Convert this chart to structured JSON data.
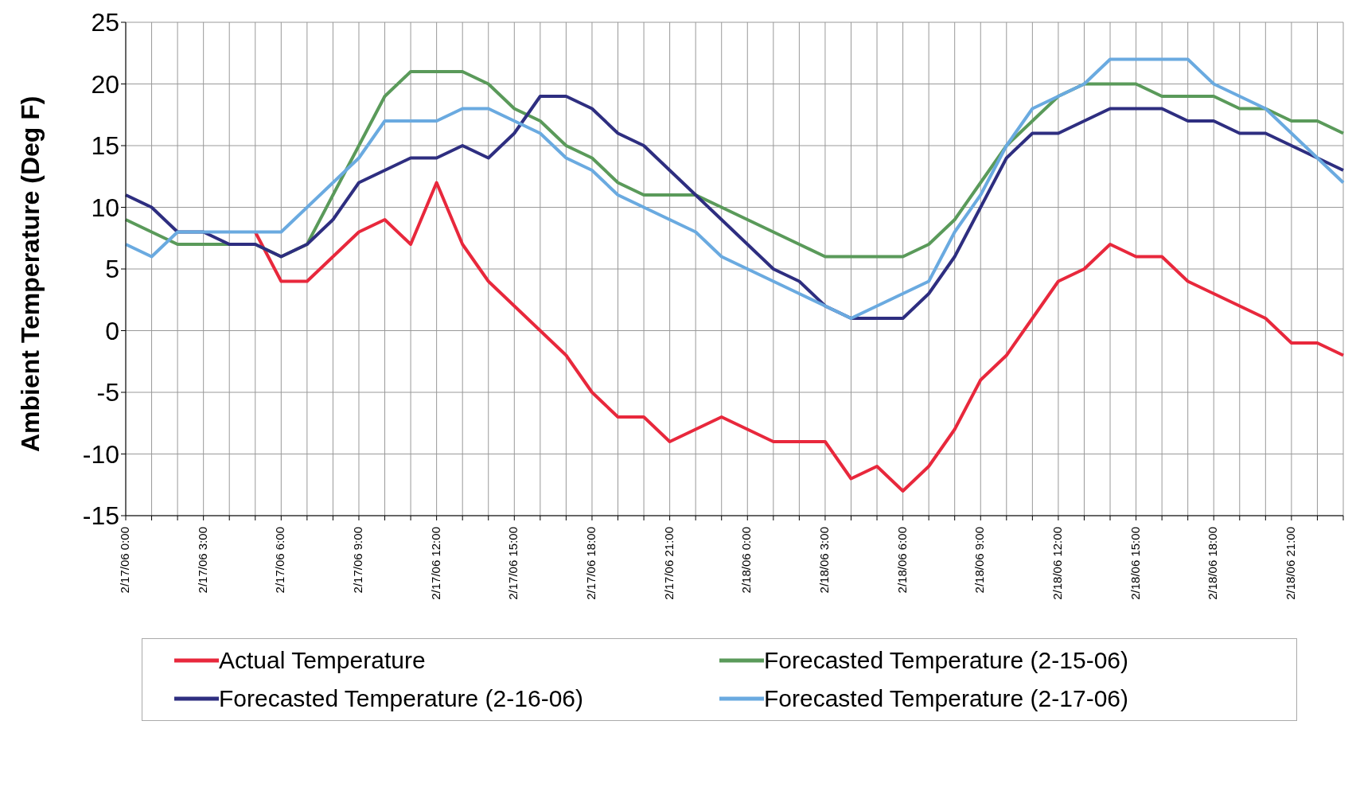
{
  "chart_data": {
    "type": "line",
    "ylabel": "Ambient Temperature (Deg F)",
    "categories": [
      "2/17/06 0:00",
      null,
      null,
      "2/17/06 3:00",
      null,
      null,
      "2/17/06 6:00",
      null,
      null,
      "2/17/06 9:00",
      null,
      null,
      "2/17/06 12:00",
      null,
      null,
      "2/17/06 15:00",
      null,
      null,
      "2/17/06 18:00",
      null,
      null,
      "2/17/06 21:00",
      null,
      null,
      "2/18/06 0:00",
      null,
      null,
      "2/18/06 3:00",
      null,
      null,
      "2/18/06 6:00",
      null,
      null,
      "2/18/06 9:00",
      null,
      null,
      "2/18/06 12:00",
      null,
      null,
      "2/18/06 15:00",
      null,
      null,
      "2/18/06 18:00",
      null,
      null,
      "2/18/06 21:00",
      null,
      null
    ],
    "series": [
      {
        "name": "Actual Temperature",
        "color": "#e8283c",
        "values": [
          null,
          null,
          null,
          null,
          null,
          8,
          4,
          4,
          6,
          8,
          9,
          7,
          12,
          7,
          4,
          2,
          0,
          -2,
          -5,
          -7,
          -7,
          -9,
          -8,
          -7,
          -8,
          -9,
          -9,
          -9,
          -12,
          -11,
          -13,
          -11,
          -8,
          -4,
          -2,
          1,
          4,
          5,
          7,
          6,
          6,
          4,
          3,
          2,
          1,
          -1,
          -1,
          -2
        ]
      },
      {
        "name": "Forecasted Temperature (2-15-06)",
        "color": "#5a9a5a",
        "values": [
          9,
          8,
          7,
          7,
          7,
          7,
          6,
          7,
          11,
          15,
          19,
          21,
          21,
          21,
          20,
          18,
          17,
          15,
          14,
          12,
          11,
          11,
          11,
          10,
          9,
          8,
          7,
          6,
          6,
          6,
          6,
          7,
          9,
          12,
          15,
          17,
          19,
          20,
          20,
          20,
          19,
          19,
          19,
          18,
          18,
          17,
          17,
          16
        ]
      },
      {
        "name": "Forecasted Temperature (2-16-06)",
        "color": "#2e2e80",
        "values": [
          11,
          10,
          8,
          8,
          7,
          7,
          6,
          7,
          9,
          12,
          13,
          14,
          14,
          15,
          14,
          16,
          19,
          19,
          18,
          16,
          15,
          13,
          11,
          9,
          7,
          5,
          4,
          2,
          1,
          1,
          1,
          3,
          6,
          10,
          14,
          16,
          16,
          17,
          18,
          18,
          18,
          17,
          17,
          16,
          16,
          15,
          14,
          13
        ]
      },
      {
        "name": "Forecasted Temperature (2-17-06)",
        "color": "#6aaae0",
        "values": [
          7,
          6,
          8,
          8,
          8,
          8,
          8,
          10,
          12,
          14,
          17,
          17,
          17,
          18,
          18,
          17,
          16,
          14,
          13,
          11,
          10,
          9,
          8,
          6,
          5,
          4,
          3,
          2,
          1,
          2,
          3,
          4,
          8,
          11,
          15,
          18,
          19,
          20,
          22,
          22,
          22,
          22,
          20,
          19,
          18,
          16,
          14,
          12
        ]
      }
    ],
    "ylim": [
      -15,
      25
    ],
    "yticks": [
      -15,
      -10,
      -5,
      0,
      5,
      10,
      15,
      20,
      25
    ],
    "grid": true,
    "legend": "bottom",
    "marker": "none",
    "line_style": "solid"
  }
}
